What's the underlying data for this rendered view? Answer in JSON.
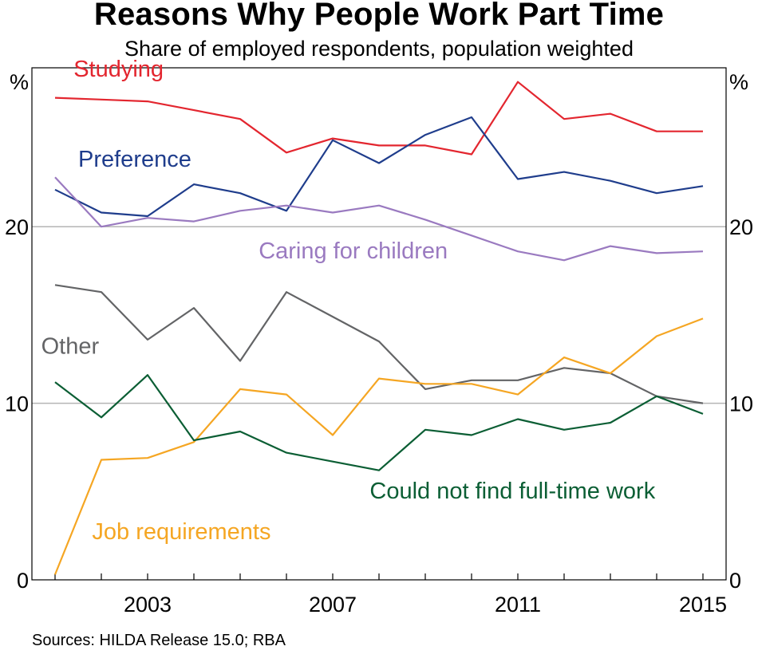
{
  "title": "Reasons Why People Work Part Time",
  "subtitle": "Share of employed respondents, population weighted",
  "source": "Sources: HILDA Release 15.0; RBA",
  "chart_data": {
    "type": "line",
    "x": [
      2001,
      2002,
      2003,
      2004,
      2005,
      2006,
      2007,
      2008,
      2009,
      2010,
      2011,
      2012,
      2013,
      2014,
      2015
    ],
    "ylim": [
      0,
      29
    ],
    "xlim": [
      2000.5,
      2015.5
    ],
    "yticks": [
      0,
      10,
      20
    ],
    "xticks": [
      2003,
      2007,
      2011,
      2015
    ],
    "y_unit_left": "%",
    "y_unit_right": "%",
    "grid": "horizontal at 10 and 20",
    "series": [
      {
        "name": "Studying",
        "color": "#e3262f",
        "values": [
          27.3,
          27.2,
          27.1,
          26.6,
          26.1,
          24.2,
          25.0,
          24.6,
          24.6,
          24.1,
          28.2,
          26.1,
          26.4,
          25.4,
          25.4
        ],
        "label_pos": [
          2001.4,
          28.5
        ]
      },
      {
        "name": "Preference",
        "color": "#1f3d8c",
        "values": [
          22.1,
          20.8,
          20.6,
          22.4,
          21.9,
          20.9,
          24.9,
          23.6,
          25.2,
          26.2,
          22.7,
          23.1,
          22.6,
          21.9,
          22.3
        ],
        "label_pos": [
          2001.5,
          23.4
        ]
      },
      {
        "name": "Caring for children",
        "color": "#9a7ac0",
        "values": [
          22.8,
          20.0,
          20.5,
          20.3,
          20.9,
          21.2,
          20.8,
          21.2,
          20.4,
          19.5,
          18.6,
          18.1,
          18.9,
          18.5,
          18.6
        ],
        "label_pos": [
          2005.4,
          18.2
        ]
      },
      {
        "name": "Other",
        "color": "#636466",
        "values": [
          16.7,
          16.3,
          13.6,
          15.4,
          12.4,
          16.3,
          14.9,
          13.5,
          10.8,
          11.3,
          11.3,
          12.0,
          11.7,
          10.4,
          10.0
        ],
        "label_pos": [
          2000.7,
          12.8
        ]
      },
      {
        "name": "Job requirements",
        "color": "#f5a623",
        "values": [
          0.3,
          6.8,
          6.9,
          7.8,
          10.8,
          10.5,
          8.2,
          11.4,
          11.1,
          11.1,
          10.5,
          12.6,
          11.7,
          13.8,
          14.8
        ],
        "label_pos": [
          2001.8,
          2.3
        ]
      },
      {
        "name": "Could not find full-time work",
        "color": "#0b5e34",
        "values": [
          11.2,
          9.2,
          11.6,
          7.9,
          8.4,
          7.2,
          6.7,
          6.2,
          8.5,
          8.2,
          9.1,
          8.5,
          8.9,
          10.4,
          9.4
        ],
        "label_pos": [
          2007.8,
          4.6
        ]
      }
    ]
  }
}
